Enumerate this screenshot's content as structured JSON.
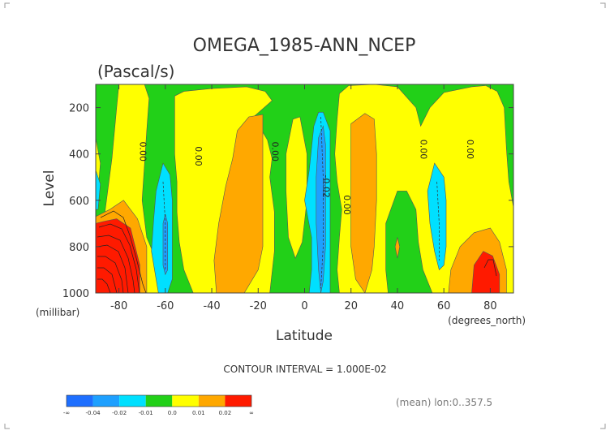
{
  "chart_data": {
    "type": "heatmap",
    "title": "OMEGA_1985-ANN_NCEP",
    "units": "(Pascal/s)",
    "xlabel": "Latitude",
    "ylabel": "Level",
    "x_units": "(degrees_north)",
    "y_units": "(millibar)",
    "xlim": [
      -90,
      90
    ],
    "ylim": [
      1000,
      100
    ],
    "x_ticks": [
      -80,
      -60,
      -40,
      -20,
      0,
      20,
      40,
      60,
      80
    ],
    "y_ticks": [
      200,
      400,
      600,
      800,
      1000
    ],
    "contour_interval": "CONTOUR INTERVAL = 1.000E-02",
    "footnote": "(mean) lon:0..357.5",
    "contour_labels": [
      {
        "text": "0.00",
        "lat": -71,
        "lev": 390
      },
      {
        "text": "0.00",
        "lat": -47,
        "lev": 410
      },
      {
        "text": "0.00",
        "lat": -14,
        "lev": 390
      },
      {
        "text": "-0.02",
        "lat": 8,
        "lev": 540
      },
      {
        "text": "0.00",
        "lat": 17,
        "lev": 620
      },
      {
        "text": "0.00",
        "lat": 50,
        "lev": 380
      },
      {
        "text": "0.00",
        "lat": 70,
        "lev": 380
      }
    ],
    "legend": {
      "levels": [
        "-∞",
        "-0.04",
        "-0.02",
        "-0.01",
        "0.0",
        "0.01",
        "0.02",
        "∞"
      ],
      "colors": [
        "#1e6fff",
        "#1ea0ff",
        "#00e0ff",
        "#22d018",
        "#ffff00",
        "#ffa800",
        "#ff1a00"
      ]
    },
    "regions": [
      {
        "name": "background",
        "color": "#22d018",
        "pts": [
          [
            -90,
            100
          ],
          [
            90,
            100
          ],
          [
            90,
            1000
          ],
          [
            -90,
            1000
          ]
        ]
      },
      {
        "name": "pos-band-south",
        "color": "#ffff00",
        "pts": [
          [
            -80,
            100
          ],
          [
            -69,
            100
          ],
          [
            -67,
            160
          ],
          [
            -68,
            300
          ],
          [
            -70,
            600
          ],
          [
            -68,
            760
          ],
          [
            -63,
            880
          ],
          [
            -59,
            1000
          ],
          [
            -90,
            1000
          ],
          [
            -90,
            860
          ],
          [
            -86,
            650
          ],
          [
            -83,
            420
          ],
          [
            -81,
            200
          ]
        ]
      },
      {
        "name": "pos-left-edge",
        "color": "#ffff00",
        "pts": [
          [
            -90,
            330
          ],
          [
            -88,
            440
          ],
          [
            -89,
            560
          ],
          [
            -90,
            570
          ]
        ]
      },
      {
        "name": "pos-south-mid",
        "color": "#ffff00",
        "pts": [
          [
            -56,
            150
          ],
          [
            -52,
            130
          ],
          [
            -40,
            118
          ],
          [
            -25,
            110
          ],
          [
            -17,
            130
          ],
          [
            -14,
            170
          ],
          [
            -22,
            240
          ],
          [
            -16,
            340
          ],
          [
            -14,
            420
          ],
          [
            -15,
            500
          ],
          [
            -13,
            650
          ],
          [
            -13,
            820
          ],
          [
            -15,
            1000
          ],
          [
            -48,
            1000
          ],
          [
            -52,
            900
          ],
          [
            -54,
            780
          ],
          [
            -55,
            650
          ],
          [
            -55,
            520
          ],
          [
            -56,
            400
          ],
          [
            -56,
            260
          ]
        ]
      },
      {
        "name": "pos-center",
        "color": "#ffff00",
        "pts": [
          [
            -5,
            250
          ],
          [
            -2,
            240
          ],
          [
            1,
            400
          ],
          [
            1,
            600
          ],
          [
            -1,
            780
          ],
          [
            -4,
            850
          ],
          [
            -7,
            760
          ],
          [
            -8,
            560
          ],
          [
            -8,
            400
          ]
        ]
      },
      {
        "name": "pos-north",
        "color": "#ffff00",
        "pts": [
          [
            15,
            140
          ],
          [
            19,
            105
          ],
          [
            30,
            100
          ],
          [
            40,
            110
          ],
          [
            48,
            200
          ],
          [
            50,
            280
          ],
          [
            54,
            200
          ],
          [
            60,
            135
          ],
          [
            72,
            110
          ],
          [
            78,
            105
          ],
          [
            83,
            130
          ],
          [
            86,
            200
          ],
          [
            87,
            380
          ],
          [
            88,
            520
          ],
          [
            90,
            630
          ],
          [
            90,
            1000
          ],
          [
            55,
            1000
          ],
          [
            51,
            900
          ],
          [
            49,
            780
          ],
          [
            48,
            640
          ],
          [
            44,
            560
          ],
          [
            40,
            560
          ],
          [
            35,
            700
          ],
          [
            35,
            900
          ],
          [
            36,
            1000
          ],
          [
            15,
            1000
          ],
          [
            14,
            900
          ],
          [
            15,
            760
          ],
          [
            16,
            640
          ],
          [
            14,
            520
          ],
          [
            13,
            400
          ],
          [
            14,
            250
          ]
        ]
      },
      {
        "name": "pos2-south",
        "color": "#ffa800",
        "pts": [
          [
            -90,
            670
          ],
          [
            -90,
            1000
          ],
          [
            -68,
            1000
          ],
          [
            -68,
            800
          ],
          [
            -72,
            680
          ],
          [
            -78,
            600
          ],
          [
            -84,
            640
          ]
        ]
      },
      {
        "name": "pos2-south-mid",
        "color": "#ffa800",
        "pts": [
          [
            -29,
            300
          ],
          [
            -24,
            240
          ],
          [
            -18,
            230
          ],
          [
            -18,
            400
          ],
          [
            -18,
            600
          ],
          [
            -18,
            800
          ],
          [
            -20,
            900
          ],
          [
            -26,
            1000
          ],
          [
            -38,
            1000
          ],
          [
            -39,
            860
          ],
          [
            -37,
            700
          ],
          [
            -34,
            540
          ],
          [
            -31,
            420
          ]
        ]
      },
      {
        "name": "pos2-north",
        "color": "#ffa800",
        "pts": [
          [
            20,
            270
          ],
          [
            26,
            225
          ],
          [
            30,
            250
          ],
          [
            31,
            400
          ],
          [
            31,
            600
          ],
          [
            30,
            800
          ],
          [
            29,
            900
          ],
          [
            26,
            1000
          ],
          [
            22,
            940
          ],
          [
            20,
            800
          ],
          [
            20,
            600
          ],
          [
            20,
            420
          ]
        ]
      },
      {
        "name": "pos2-north-blob",
        "color": "#ffa800",
        "pts": [
          [
            39,
            800
          ],
          [
            40,
            760
          ],
          [
            41,
            800
          ],
          [
            40,
            850
          ]
        ]
      },
      {
        "name": "pos2-north-pole",
        "color": "#ffa800",
        "pts": [
          [
            62,
            1000
          ],
          [
            63,
            900
          ],
          [
            67,
            800
          ],
          [
            73,
            740
          ],
          [
            80,
            720
          ],
          [
            84,
            780
          ],
          [
            87,
            900
          ],
          [
            87,
            1000
          ]
        ]
      },
      {
        "name": "pos3-south",
        "color": "#ff1a00",
        "pts": [
          [
            -90,
            700
          ],
          [
            -90,
            1000
          ],
          [
            -71,
            1000
          ],
          [
            -71,
            880
          ],
          [
            -75,
            720
          ],
          [
            -81,
            680
          ],
          [
            -86,
            690
          ]
        ]
      },
      {
        "name": "pos3-north",
        "color": "#ff1a00",
        "pts": [
          [
            72,
            1000
          ],
          [
            73,
            880
          ],
          [
            77,
            820
          ],
          [
            81,
            840
          ],
          [
            84,
            920
          ],
          [
            84,
            1000
          ]
        ]
      },
      {
        "name": "neg-south",
        "color": "#00e0ff",
        "pts": [
          [
            -64,
            560
          ],
          [
            -61,
            440
          ],
          [
            -58,
            490
          ],
          [
            -57,
            600
          ],
          [
            -57,
            800
          ],
          [
            -57,
            940
          ],
          [
            -59,
            1000
          ],
          [
            -63,
            1000
          ],
          [
            -66,
            820
          ],
          [
            -65,
            680
          ]
        ]
      },
      {
        "name": "neg-center",
        "color": "#00e0ff",
        "pts": [
          [
            0,
            600
          ],
          [
            2,
            470
          ],
          [
            4,
            280
          ],
          [
            6,
            220
          ],
          [
            8,
            220
          ],
          [
            11,
            300
          ],
          [
            11,
            500
          ],
          [
            11,
            700
          ],
          [
            11,
            820
          ],
          [
            11,
            1000
          ],
          [
            2,
            1000
          ],
          [
            3,
            900
          ],
          [
            3,
            760
          ]
        ]
      },
      {
        "name": "neg-left-edge",
        "color": "#00e0ff",
        "pts": [
          [
            -90,
            470
          ],
          [
            -88,
            530
          ],
          [
            -89,
            640
          ],
          [
            -90,
            640
          ]
        ]
      },
      {
        "name": "neg-north",
        "color": "#00e0ff",
        "pts": [
          [
            53,
            560
          ],
          [
            56,
            440
          ],
          [
            60,
            500
          ],
          [
            61,
            600
          ],
          [
            61,
            800
          ],
          [
            60,
            880
          ],
          [
            58,
            900
          ],
          [
            56,
            820
          ],
          [
            54,
            700
          ]
        ]
      },
      {
        "name": "neg2-south",
        "color": "#1ea0ff",
        "pts": [
          [
            -61,
            700
          ],
          [
            -60,
            660
          ],
          [
            -59,
            700
          ],
          [
            -59,
            900
          ],
          [
            -60,
            920
          ],
          [
            -61,
            880
          ]
        ]
      },
      {
        "name": "neg2-center",
        "color": "#1ea0ff",
        "pts": [
          [
            6,
            330
          ],
          [
            8,
            280
          ],
          [
            9,
            360
          ],
          [
            9,
            600
          ],
          [
            9,
            800
          ],
          [
            8,
            950
          ],
          [
            7,
            1000
          ],
          [
            6,
            900
          ],
          [
            5,
            700
          ],
          [
            5,
            500
          ]
        ]
      }
    ]
  }
}
